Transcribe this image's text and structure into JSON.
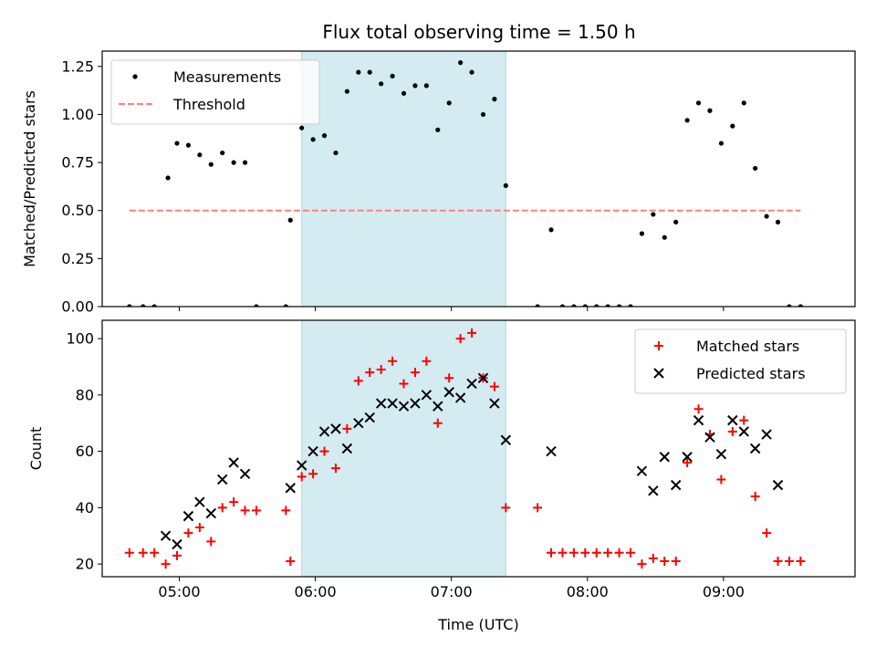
{
  "chart_data": [
    {
      "type": "scatter",
      "title": "Flux total observing time = 1.50 h",
      "xlabel": "",
      "ylabel": "Matched/Predicted stars",
      "xlim": [
        "04:26",
        "09:58"
      ],
      "ylim": [
        0,
        1.33
      ],
      "x_ticks": [
        "05:00",
        "06:00",
        "07:00",
        "08:00",
        "09:00"
      ],
      "y_ticks": [
        "0.00",
        "0.25",
        "0.50",
        "0.75",
        "1.00",
        "1.25"
      ],
      "shaded_span": {
        "start": "05:54",
        "end": "07:24",
        "color": "#add8e6"
      },
      "threshold": {
        "name": "Threshold",
        "value": 0.5,
        "start": "04:38",
        "end": "09:34",
        "color": "#ff7f7f",
        "style": "dashed"
      },
      "legend": {
        "position": "top-left",
        "entries": [
          "Measurements",
          "Threshold"
        ]
      },
      "series": [
        {
          "name": "Measurements",
          "color": "#000000",
          "marker": "dot",
          "points": [
            [
              "04:38",
              0.0
            ],
            [
              "04:44",
              0.0
            ],
            [
              "04:49",
              0.0
            ],
            [
              "04:55",
              0.67
            ],
            [
              "04:59",
              0.85
            ],
            [
              "05:04",
              0.84
            ],
            [
              "05:09",
              0.79
            ],
            [
              "05:14",
              0.74
            ],
            [
              "05:19",
              0.8
            ],
            [
              "05:24",
              0.75
            ],
            [
              "05:29",
              0.75
            ],
            [
              "05:34",
              0.0
            ],
            [
              "05:47",
              0.0
            ],
            [
              "05:49",
              0.45
            ],
            [
              "05:54",
              0.93
            ],
            [
              "05:59",
              0.87
            ],
            [
              "06:04",
              0.89
            ],
            [
              "06:09",
              0.8
            ],
            [
              "06:14",
              1.12
            ],
            [
              "06:19",
              1.22
            ],
            [
              "06:24",
              1.22
            ],
            [
              "06:29",
              1.16
            ],
            [
              "06:34",
              1.2
            ],
            [
              "06:39",
              1.11
            ],
            [
              "06:44",
              1.15
            ],
            [
              "06:49",
              1.15
            ],
            [
              "06:54",
              0.92
            ],
            [
              "06:59",
              1.06
            ],
            [
              "07:04",
              1.27
            ],
            [
              "07:09",
              1.22
            ],
            [
              "07:14",
              1.0
            ],
            [
              "07:19",
              1.08
            ],
            [
              "07:24",
              0.63
            ],
            [
              "07:38",
              0.0
            ],
            [
              "07:44",
              0.4
            ],
            [
              "07:49",
              0.0
            ],
            [
              "07:54",
              0.0
            ],
            [
              "07:59",
              0.0
            ],
            [
              "08:04",
              0.0
            ],
            [
              "08:09",
              0.0
            ],
            [
              "08:14",
              0.0
            ],
            [
              "08:19",
              0.0
            ],
            [
              "08:24",
              0.38
            ],
            [
              "08:29",
              0.48
            ],
            [
              "08:34",
              0.36
            ],
            [
              "08:39",
              0.44
            ],
            [
              "08:44",
              0.97
            ],
            [
              "08:49",
              1.06
            ],
            [
              "08:54",
              1.02
            ],
            [
              "08:59",
              0.85
            ],
            [
              "09:04",
              0.94
            ],
            [
              "09:09",
              1.06
            ],
            [
              "09:14",
              0.72
            ],
            [
              "09:19",
              0.47
            ],
            [
              "09:24",
              0.44
            ],
            [
              "09:29",
              0.0
            ],
            [
              "09:34",
              0.0
            ]
          ]
        }
      ]
    },
    {
      "type": "scatter",
      "title": "",
      "xlabel": "Time (UTC)",
      "ylabel": "Count",
      "xlim": [
        "04:26",
        "09:58"
      ],
      "ylim": [
        15.5,
        106.5
      ],
      "x_ticks": [
        "05:00",
        "06:00",
        "07:00",
        "08:00",
        "09:00"
      ],
      "y_ticks": [
        "20",
        "40",
        "60",
        "80",
        "100"
      ],
      "shaded_span": {
        "start": "05:54",
        "end": "07:24",
        "color": "#add8e6"
      },
      "legend": {
        "position": "top-right",
        "entries": [
          "Matched stars",
          "Predicted stars"
        ]
      },
      "series": [
        {
          "name": "Matched stars",
          "color": "#ff0000",
          "marker": "plus",
          "points": [
            [
              "04:38",
              24
            ],
            [
              "04:44",
              24
            ],
            [
              "04:49",
              24
            ],
            [
              "04:54",
              20
            ],
            [
              "04:59",
              23
            ],
            [
              "05:04",
              31
            ],
            [
              "05:09",
              33
            ],
            [
              "05:14",
              28
            ],
            [
              "05:19",
              40
            ],
            [
              "05:24",
              42
            ],
            [
              "05:29",
              39
            ],
            [
              "05:34",
              39
            ],
            [
              "05:47",
              39
            ],
            [
              "05:49",
              21
            ],
            [
              "05:54",
              51
            ],
            [
              "05:59",
              52
            ],
            [
              "06:04",
              60
            ],
            [
              "06:09",
              54
            ],
            [
              "06:14",
              68
            ],
            [
              "06:19",
              85
            ],
            [
              "06:24",
              88
            ],
            [
              "06:29",
              89
            ],
            [
              "06:34",
              92
            ],
            [
              "06:39",
              84
            ],
            [
              "06:44",
              88
            ],
            [
              "06:49",
              92
            ],
            [
              "06:54",
              70
            ],
            [
              "06:59",
              86
            ],
            [
              "07:04",
              100
            ],
            [
              "07:09",
              102
            ],
            [
              "07:14",
              86
            ],
            [
              "07:19",
              83
            ],
            [
              "07:24",
              40
            ],
            [
              "07:38",
              40
            ],
            [
              "07:44",
              24
            ],
            [
              "07:49",
              24
            ],
            [
              "07:54",
              24
            ],
            [
              "07:59",
              24
            ],
            [
              "08:04",
              24
            ],
            [
              "08:09",
              24
            ],
            [
              "08:14",
              24
            ],
            [
              "08:19",
              24
            ],
            [
              "08:24",
              20
            ],
            [
              "08:29",
              22
            ],
            [
              "08:34",
              21
            ],
            [
              "08:39",
              21
            ],
            [
              "08:44",
              56
            ],
            [
              "08:49",
              75
            ],
            [
              "08:54",
              66
            ],
            [
              "08:59",
              50
            ],
            [
              "09:04",
              67
            ],
            [
              "09:09",
              71
            ],
            [
              "09:14",
              44
            ],
            [
              "09:19",
              31
            ],
            [
              "09:24",
              21
            ],
            [
              "09:29",
              21
            ],
            [
              "09:34",
              21
            ]
          ]
        },
        {
          "name": "Predicted stars",
          "color": "#000000",
          "marker": "x",
          "points": [
            [
              "04:54",
              30
            ],
            [
              "04:59",
              27
            ],
            [
              "05:04",
              37
            ],
            [
              "05:09",
              42
            ],
            [
              "05:14",
              38
            ],
            [
              "05:19",
              50
            ],
            [
              "05:24",
              56
            ],
            [
              "05:29",
              52
            ],
            [
              "05:49",
              47
            ],
            [
              "05:54",
              55
            ],
            [
              "05:59",
              60
            ],
            [
              "06:04",
              67
            ],
            [
              "06:09",
              68
            ],
            [
              "06:14",
              61
            ],
            [
              "06:19",
              70
            ],
            [
              "06:24",
              72
            ],
            [
              "06:29",
              77
            ],
            [
              "06:34",
              77
            ],
            [
              "06:39",
              76
            ],
            [
              "06:44",
              77
            ],
            [
              "06:49",
              80
            ],
            [
              "06:54",
              76
            ],
            [
              "06:59",
              81
            ],
            [
              "07:04",
              79
            ],
            [
              "07:09",
              84
            ],
            [
              "07:14",
              86
            ],
            [
              "07:19",
              77
            ],
            [
              "07:24",
              64
            ],
            [
              "07:44",
              60
            ],
            [
              "08:24",
              53
            ],
            [
              "08:29",
              46
            ],
            [
              "08:34",
              58
            ],
            [
              "08:39",
              48
            ],
            [
              "08:44",
              58
            ],
            [
              "08:49",
              71
            ],
            [
              "08:54",
              65
            ],
            [
              "08:59",
              59
            ],
            [
              "09:04",
              71
            ],
            [
              "09:09",
              67
            ],
            [
              "09:14",
              61
            ],
            [
              "09:19",
              66
            ],
            [
              "09:24",
              48
            ]
          ]
        }
      ]
    }
  ]
}
